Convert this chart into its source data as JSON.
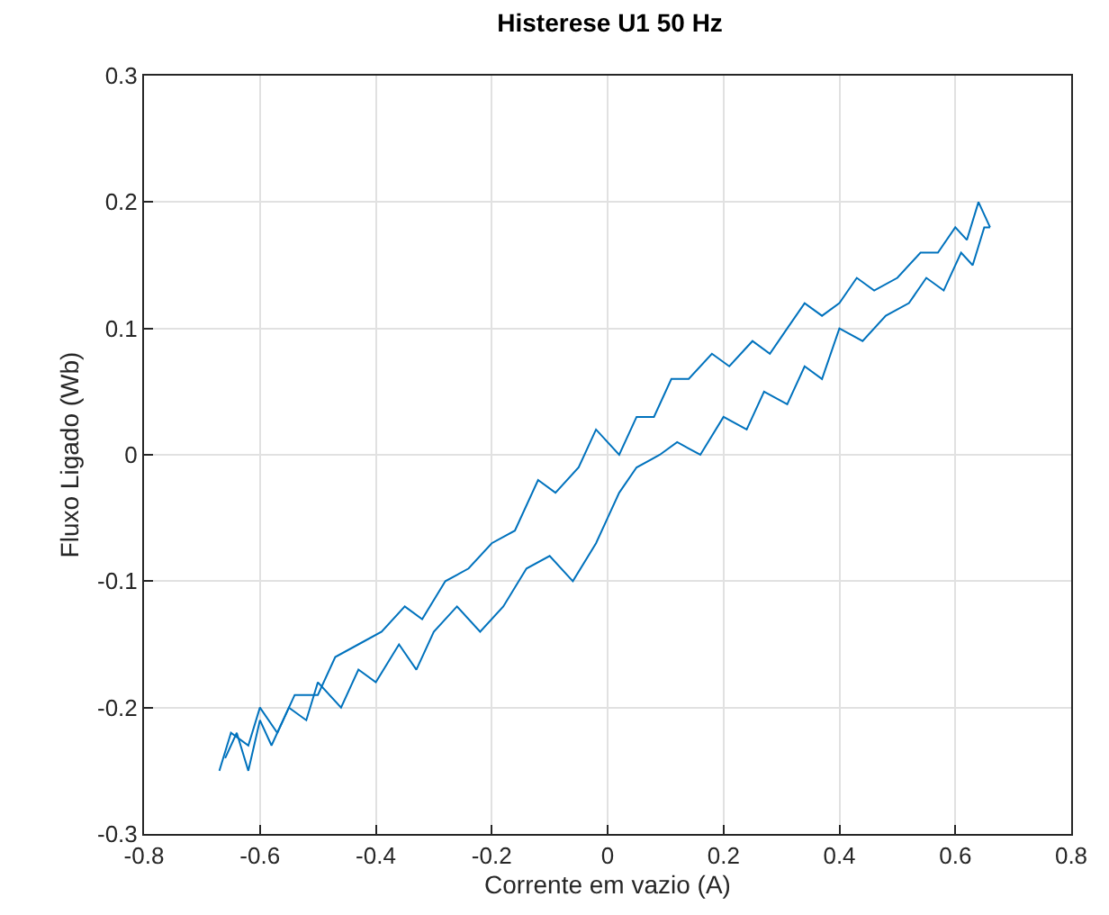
{
  "chart_data": {
    "type": "line",
    "title": "Histerese U1 50 Hz",
    "xlabel": "Corrente em vazio (A)",
    "ylabel": "Fluxo Ligado (Wb)",
    "xlim": [
      -0.8,
      0.8
    ],
    "xticks": [
      -0.8,
      -0.6,
      -0.4,
      -0.2,
      0,
      0.2,
      0.4,
      0.6,
      0.8
    ],
    "ylim": [
      -0.3,
      0.3
    ],
    "yticks": [
      -0.3,
      -0.2,
      -0.1,
      0,
      0.1,
      0.2,
      0.3
    ],
    "grid": true,
    "marker": "none",
    "line_style": "solid",
    "series": [
      {
        "color": "#0072bd",
        "x": [
          -0.66,
          -0.64,
          -0.62,
          -0.6,
          -0.58,
          -0.55,
          -0.52,
          -0.5,
          -0.46,
          -0.43,
          -0.4,
          -0.36,
          -0.33,
          -0.3,
          -0.26,
          -0.22,
          -0.18,
          -0.14,
          -0.1,
          -0.06,
          -0.02,
          0.0,
          0.02,
          0.05,
          0.09,
          0.12,
          0.16,
          0.2,
          0.24,
          0.27,
          0.31,
          0.34,
          0.37,
          0.4,
          0.44,
          0.48,
          0.52,
          0.55,
          0.58,
          0.61,
          0.63,
          0.65,
          0.66
        ],
        "values": [
          -0.24,
          -0.22,
          -0.25,
          -0.21,
          -0.23,
          -0.2,
          -0.21,
          -0.18,
          -0.2,
          -0.17,
          -0.18,
          -0.15,
          -0.17,
          -0.14,
          -0.12,
          -0.14,
          -0.12,
          -0.09,
          -0.08,
          -0.1,
          -0.07,
          -0.05,
          -0.03,
          -0.01,
          0.0,
          0.01,
          0.0,
          0.03,
          0.02,
          0.05,
          0.04,
          0.07,
          0.06,
          0.1,
          0.09,
          0.11,
          0.12,
          0.14,
          0.13,
          0.16,
          0.15,
          0.18,
          0.18
        ]
      },
      {
        "color": "#0072bd",
        "x": [
          0.66,
          0.64,
          0.62,
          0.6,
          0.57,
          0.54,
          0.5,
          0.46,
          0.43,
          0.4,
          0.37,
          0.34,
          0.31,
          0.28,
          0.25,
          0.21,
          0.18,
          0.14,
          0.11,
          0.08,
          0.05,
          0.02,
          -0.02,
          -0.05,
          -0.09,
          -0.12,
          -0.16,
          -0.2,
          -0.24,
          -0.28,
          -0.32,
          -0.35,
          -0.39,
          -0.43,
          -0.47,
          -0.5,
          -0.54,
          -0.57,
          -0.6,
          -0.62,
          -0.65,
          -0.67
        ],
        "values": [
          0.18,
          0.2,
          0.17,
          0.18,
          0.16,
          0.16,
          0.14,
          0.13,
          0.14,
          0.12,
          0.11,
          0.12,
          0.1,
          0.08,
          0.09,
          0.07,
          0.08,
          0.06,
          0.06,
          0.03,
          0.03,
          0.0,
          0.02,
          -0.01,
          -0.03,
          -0.02,
          -0.06,
          -0.07,
          -0.09,
          -0.1,
          -0.13,
          -0.12,
          -0.14,
          -0.15,
          -0.16,
          -0.19,
          -0.19,
          -0.22,
          -0.2,
          -0.23,
          -0.22,
          -0.25
        ]
      }
    ]
  }
}
